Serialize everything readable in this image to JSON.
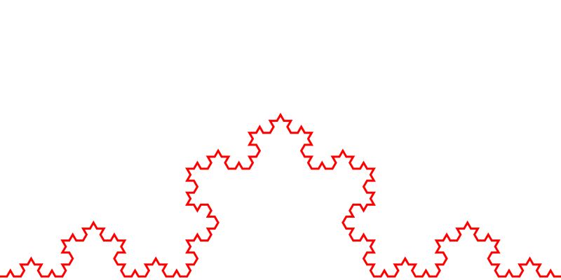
{
  "figure": {
    "shape": "koch-curve",
    "iterations": 4,
    "stroke_color": "#ff0000",
    "background_color": "#ffffff"
  }
}
